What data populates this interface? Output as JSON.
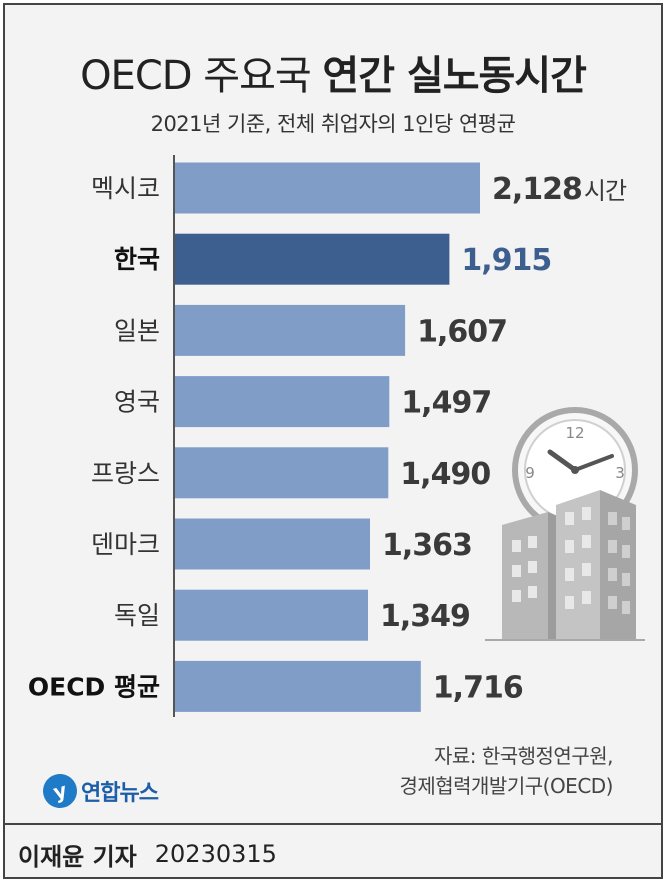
{
  "header": {
    "title_light": "OECD 주요국",
    "title_bold": "연간 실노동시간",
    "subtitle": "2021년 기준, 전체 취업자의 1인당 연평균"
  },
  "chart_data": {
    "type": "bar",
    "orientation": "horizontal",
    "title": "OECD 주요국 연간 실노동시간",
    "subtitle": "2021년 기준, 전체 취업자의 1인당 연평균",
    "categories": [
      "멕시코",
      "한국",
      "일본",
      "영국",
      "프랑스",
      "덴마크",
      "독일",
      "OECD 평균"
    ],
    "value_labels": [
      "2,128",
      "1,915",
      "1,607",
      "1,497",
      "1,490",
      "1,363",
      "1,349",
      "1,716"
    ],
    "values": [
      2128,
      1915,
      1607,
      1497,
      1490,
      1363,
      1349,
      1716
    ],
    "unit": "시간",
    "highlight": [
      "한국"
    ],
    "bold_labels": [
      "한국",
      "OECD 평균"
    ],
    "colors": {
      "bar": "#7f9dc6",
      "highlight_bar": "#3d5f8f",
      "highlight_text": "#3d5f8f",
      "label_text": "#333333",
      "value_text": "#3a3a3a",
      "axis": "#555555"
    },
    "grid": false,
    "legend": "none"
  },
  "illustration": {
    "name": "clock-and-buildings",
    "clock_numbers": [
      "12",
      "9",
      "3"
    ]
  },
  "source": {
    "line1": "자료: 한국행정연구원,",
    "line2": "경제협력개발기구(OECD)"
  },
  "logo": {
    "text": "연합뉴스",
    "mark_icon": "yonhap-logo-icon"
  },
  "footer": {
    "reporter": "이재윤 기자",
    "date": "20230315"
  }
}
